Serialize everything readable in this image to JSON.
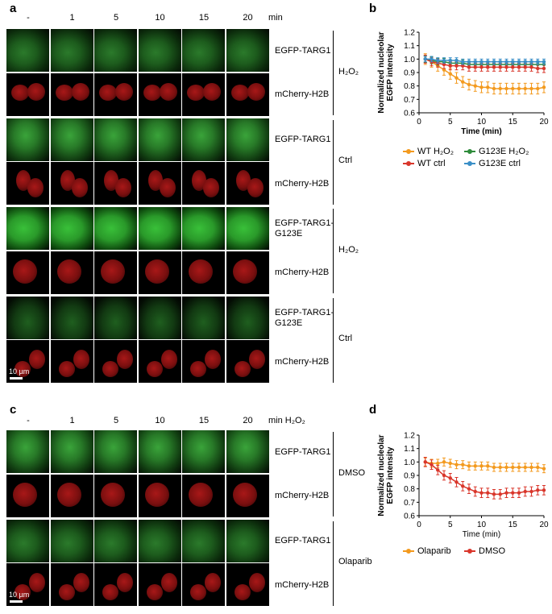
{
  "panel_a": {
    "label": "a",
    "times": [
      "-",
      "1",
      "5",
      "10",
      "15",
      "20"
    ],
    "time_unit": "min",
    "rows": [
      {
        "label": "EGFP-TARG1",
        "style": "g"
      },
      {
        "label": "mCherry-H2B",
        "style": "r"
      },
      {
        "label": "EGFP-TARG1",
        "style": "g2"
      },
      {
        "label": "mCherry-H2B",
        "style": "r2"
      },
      {
        "label": "EGFP-TARG1-\nG123E",
        "style": "gb"
      },
      {
        "label": "mCherry-H2B",
        "style": "r1"
      },
      {
        "label": "EGFP-TARG1-\nG123E",
        "style": "gd"
      },
      {
        "label": "mCherry-H2B",
        "style": "r3"
      }
    ],
    "conditions": [
      "H₂O₂",
      "Ctrl",
      "H₂O₂",
      "Ctrl"
    ],
    "scalebar": "10 µm"
  },
  "panel_c": {
    "label": "c",
    "times": [
      "-",
      "1",
      "5",
      "10",
      "15",
      "20"
    ],
    "time_unit": "min H₂O₂",
    "rows": [
      {
        "label": "EGFP-TARG1",
        "style": "g2"
      },
      {
        "label": "mCherry-H2B",
        "style": "r1"
      },
      {
        "label": "EGFP-TARG1",
        "style": "g"
      },
      {
        "label": "mCherry-H2B",
        "style": "r3"
      }
    ],
    "conditions": [
      "DMSO",
      "Olaparib"
    ],
    "scalebar": "10 µm"
  },
  "chart_data": [
    {
      "panel": "b",
      "type": "line",
      "ylabel": "Normalized nucleolar\nEGFP intensity",
      "xlabel": "Time (min)",
      "xlim": [
        0,
        20
      ],
      "ylim": [
        0.6,
        1.2
      ],
      "xticks": [
        0,
        5,
        10,
        15,
        20
      ],
      "yticks": [
        0.6,
        0.7,
        0.8,
        0.9,
        1.0,
        1.1,
        1.2
      ],
      "x": [
        1,
        2,
        3,
        4,
        5,
        6,
        7,
        8,
        9,
        10,
        11,
        12,
        13,
        14,
        15,
        16,
        17,
        18,
        19,
        20
      ],
      "series": [
        {
          "name": "WT H₂O₂",
          "color": "#f39a1e",
          "values": [
            1.0,
            0.98,
            0.95,
            0.92,
            0.89,
            0.86,
            0.83,
            0.81,
            0.8,
            0.79,
            0.79,
            0.78,
            0.78,
            0.78,
            0.78,
            0.78,
            0.78,
            0.78,
            0.78,
            0.79
          ],
          "err": 0.04
        },
        {
          "name": "G123E H₂O₂",
          "color": "#2e8b3a",
          "values": [
            1.0,
            0.99,
            0.98,
            0.98,
            0.97,
            0.97,
            0.97,
            0.96,
            0.96,
            0.96,
            0.96,
            0.96,
            0.96,
            0.96,
            0.96,
            0.96,
            0.96,
            0.96,
            0.96,
            0.96
          ],
          "err": 0.025
        },
        {
          "name": "WT ctrl",
          "color": "#d9362b",
          "values": [
            1.0,
            0.98,
            0.97,
            0.96,
            0.95,
            0.95,
            0.95,
            0.94,
            0.94,
            0.94,
            0.94,
            0.94,
            0.94,
            0.94,
            0.94,
            0.94,
            0.94,
            0.94,
            0.93,
            0.93
          ],
          "err": 0.03
        },
        {
          "name": "G123E ctrl",
          "color": "#3a8fc7",
          "values": [
            1.0,
            1.0,
            0.99,
            0.99,
            0.99,
            0.99,
            0.98,
            0.98,
            0.98,
            0.98,
            0.98,
            0.98,
            0.98,
            0.98,
            0.98,
            0.98,
            0.98,
            0.98,
            0.98,
            0.98
          ],
          "err": 0.02
        }
      ]
    },
    {
      "panel": "d",
      "type": "line",
      "ylabel": "Normalized nucleolar\nEGFP intensity",
      "xlabel": "Time (min)",
      "xlim": [
        0,
        20
      ],
      "ylim": [
        0.6,
        1.2
      ],
      "xticks": [
        0,
        5,
        10,
        15,
        20
      ],
      "yticks": [
        0.6,
        0.7,
        0.8,
        0.9,
        1.0,
        1.1,
        1.2
      ],
      "x": [
        1,
        2,
        3,
        4,
        5,
        6,
        7,
        8,
        9,
        10,
        11,
        12,
        13,
        14,
        15,
        16,
        17,
        18,
        19,
        20
      ],
      "series": [
        {
          "name": "Olaparib",
          "color": "#f39a1e",
          "values": [
            1.0,
            0.99,
            0.99,
            1.0,
            0.99,
            0.98,
            0.98,
            0.97,
            0.97,
            0.97,
            0.97,
            0.96,
            0.96,
            0.96,
            0.96,
            0.96,
            0.96,
            0.96,
            0.96,
            0.95
          ],
          "err": 0.03
        },
        {
          "name": "DMSO",
          "color": "#d9362b",
          "values": [
            1.0,
            0.98,
            0.94,
            0.9,
            0.88,
            0.85,
            0.82,
            0.8,
            0.78,
            0.77,
            0.77,
            0.76,
            0.76,
            0.77,
            0.77,
            0.77,
            0.78,
            0.78,
            0.79,
            0.79
          ],
          "err": 0.035
        }
      ]
    }
  ],
  "labels": {
    "b": "b",
    "d": "d"
  }
}
